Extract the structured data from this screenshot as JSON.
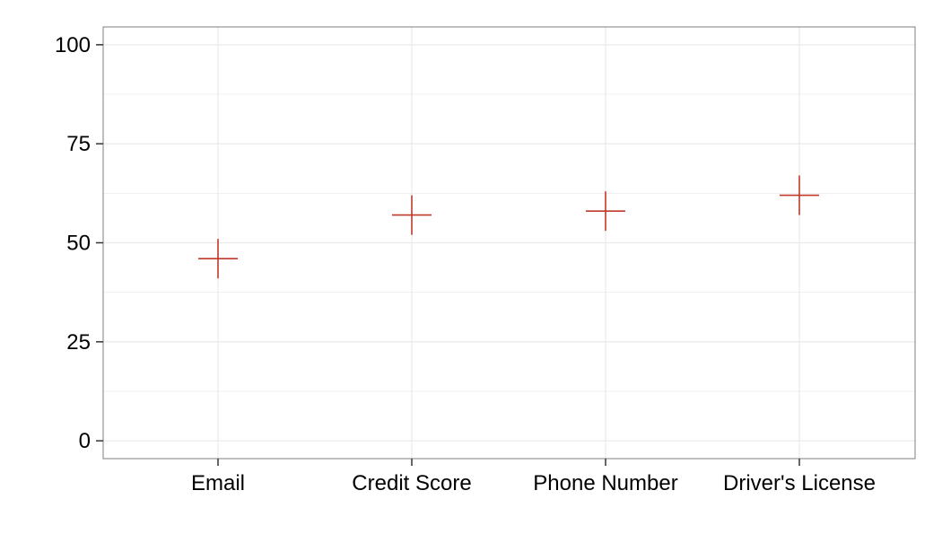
{
  "chart_data": {
    "type": "scatter",
    "title": "",
    "xlabel": "",
    "ylabel": "",
    "categories": [
      "Email",
      "Credit Score",
      "Phone Number",
      "Driver's License"
    ],
    "values": [
      46,
      57,
      58,
      62
    ],
    "ylim": [
      -4.5,
      104.5
    ],
    "yticks": [
      0,
      25,
      50,
      75,
      100
    ],
    "ytick_labels": [
      "0",
      "25",
      "50",
      "75",
      "100"
    ],
    "grid": true,
    "marker": "plus",
    "legend": "none"
  },
  "colors": {
    "marker": "#c0392b",
    "grid": "#ebebeb",
    "panel_border": "#7f7f7f",
    "tick": "#333333"
  }
}
